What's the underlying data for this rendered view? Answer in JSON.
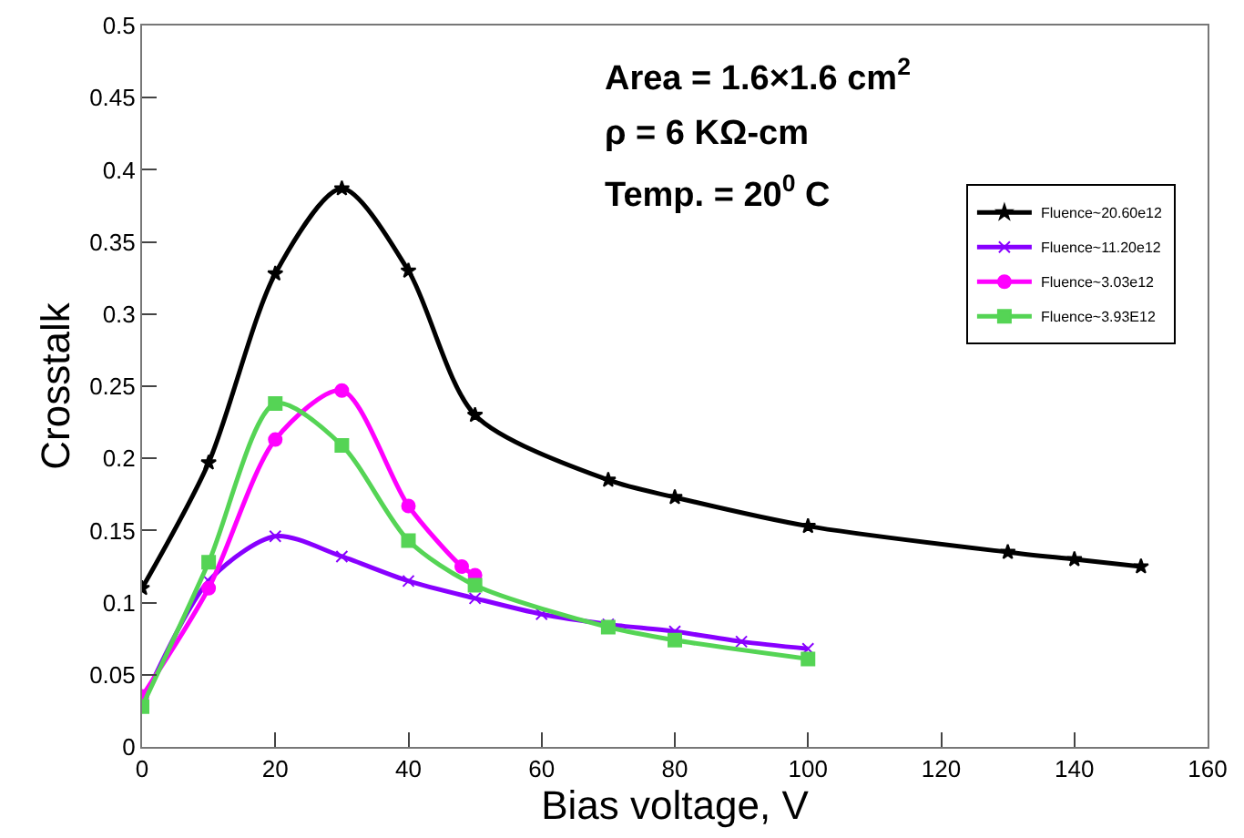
{
  "chart_data": {
    "type": "line",
    "xlabel": "Bias voltage, V",
    "ylabel": "Crosstalk",
    "annotations": [
      "Area = 1.6×1.6 cm$^{2}$",
      "ρ = 6 KΩ-cm",
      "Temp. = 20$^{0}$ C"
    ],
    "xlim": [
      0,
      160
    ],
    "xticks": [
      0,
      20,
      40,
      60,
      80,
      100,
      120,
      140,
      160
    ],
    "ylim": [
      0,
      0.5
    ],
    "yticks": [
      0,
      0.05,
      0.1,
      0.15,
      0.2,
      0.25,
      0.3,
      0.35,
      0.4,
      0.45,
      0.5
    ],
    "grid": false,
    "legend": "right",
    "line_style": "solid",
    "series": [
      {
        "name": "Fluence~20.60e12",
        "color": "#000000",
        "marker": "star",
        "x": [
          0,
          10,
          20,
          30,
          40,
          50,
          70,
          80,
          100,
          130,
          140,
          150
        ],
        "values": [
          0.11,
          0.197,
          0.328,
          0.387,
          0.33,
          0.23,
          0.185,
          0.173,
          0.153,
          0.135,
          0.13,
          0.125
        ]
      },
      {
        "name": "Fluence~11.20e12",
        "color": "#8800ff",
        "marker": "cross",
        "x": [
          0,
          10,
          20,
          30,
          40,
          50,
          60,
          70,
          80,
          90,
          100
        ],
        "values": [
          0.03,
          0.115,
          0.146,
          0.132,
          0.115,
          0.103,
          0.092,
          0.085,
          0.08,
          0.073,
          0.068
        ]
      },
      {
        "name": "Fluence~3.03e12",
        "color": "#ff00ff",
        "marker": "circle",
        "x": [
          0,
          10,
          20,
          30,
          40,
          48,
          50
        ],
        "values": [
          0.035,
          0.11,
          0.213,
          0.247,
          0.167,
          0.125,
          0.119
        ]
      },
      {
        "name": "Fluence~3.93E12",
        "color": "#55d455",
        "marker": "square",
        "x": [
          0,
          10,
          20,
          30,
          40,
          50,
          70,
          80,
          100
        ],
        "values": [
          0.028,
          0.128,
          0.238,
          0.209,
          0.143,
          0.112,
          0.083,
          0.074,
          0.061
        ]
      }
    ]
  }
}
